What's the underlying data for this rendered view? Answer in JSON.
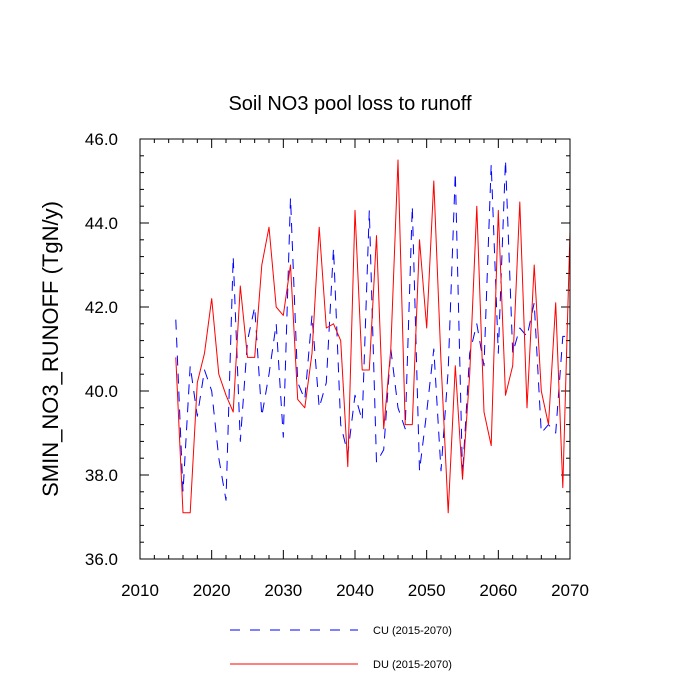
{
  "chart_data": {
    "type": "line",
    "title": "Soil NO3 pool loss to runoff",
    "xlabel": "",
    "ylabel": "SMIN_NO3_RUNOFF  (TgN/y)",
    "xlim": [
      2010,
      2070
    ],
    "ylim": [
      36.0,
      46.0
    ],
    "x_ticks": [
      2010,
      2020,
      2030,
      2040,
      2050,
      2060,
      2070
    ],
    "x_tick_labels": [
      "2010",
      "2020",
      "2030",
      "2040",
      "2050",
      "2060",
      "2070"
    ],
    "y_ticks": [
      36,
      38,
      40,
      42,
      44,
      46
    ],
    "y_tick_labels": [
      "36.0",
      "38.0",
      "40.0",
      "42.0",
      "44.0",
      "46.0"
    ],
    "legend_position": "bottom",
    "x": [
      2015,
      2016,
      2017,
      2018,
      2019,
      2020,
      2021,
      2022,
      2023,
      2024,
      2025,
      2026,
      2027,
      2028,
      2029,
      2030,
      2031,
      2032,
      2033,
      2034,
      2035,
      2036,
      2037,
      2038,
      2039,
      2040,
      2041,
      2042,
      2043,
      2044,
      2045,
      2046,
      2047,
      2048,
      2049,
      2050,
      2051,
      2052,
      2053,
      2054,
      2055,
      2056,
      2057,
      2058,
      2059,
      2060,
      2061,
      2062,
      2063,
      2064,
      2065,
      2066,
      2067,
      2068,
      2069,
      2070
    ],
    "series": [
      {
        "name": "CU (2015-2070)",
        "color": "#0000ff",
        "style": "dashed",
        "values": [
          41.7,
          37.6,
          40.6,
          39.4,
          40.5,
          40.0,
          38.4,
          37.4,
          43.2,
          38.8,
          41.2,
          42.0,
          39.4,
          40.4,
          41.6,
          38.9,
          44.6,
          40.2,
          39.8,
          41.8,
          39.6,
          40.2,
          43.4,
          39.2,
          38.5,
          39.9,
          39.3,
          44.3,
          38.3,
          38.6,
          41.0,
          39.6,
          39.1,
          44.4,
          38.1,
          39.5,
          41.0,
          38.1,
          40.5,
          45.2,
          38.0,
          40.9,
          41.6,
          40.6,
          45.4,
          40.9,
          45.5,
          40.9,
          41.5,
          41.3,
          42.1,
          39.0,
          39.2,
          39.0,
          41.3,
          41.3
        ]
      },
      {
        "name": "DU (2015-2070)",
        "color": "#ff0000",
        "style": "solid",
        "values": [
          40.8,
          37.1,
          37.1,
          40.2,
          40.9,
          42.2,
          40.4,
          39.9,
          39.5,
          42.5,
          40.8,
          40.8,
          43.0,
          43.9,
          42.0,
          41.8,
          43.0,
          39.8,
          39.6,
          40.9,
          43.9,
          41.5,
          41.6,
          41.2,
          38.2,
          44.3,
          40.5,
          40.5,
          43.7,
          39.1,
          41.0,
          45.5,
          39.2,
          39.2,
          43.6,
          41.5,
          45.0,
          40.7,
          37.1,
          40.6,
          37.9,
          40.4,
          44.4,
          39.5,
          38.7,
          44.3,
          39.9,
          40.6,
          44.5,
          39.6,
          43.0,
          40.0,
          39.2,
          42.1,
          37.7,
          43.8
        ]
      }
    ]
  }
}
